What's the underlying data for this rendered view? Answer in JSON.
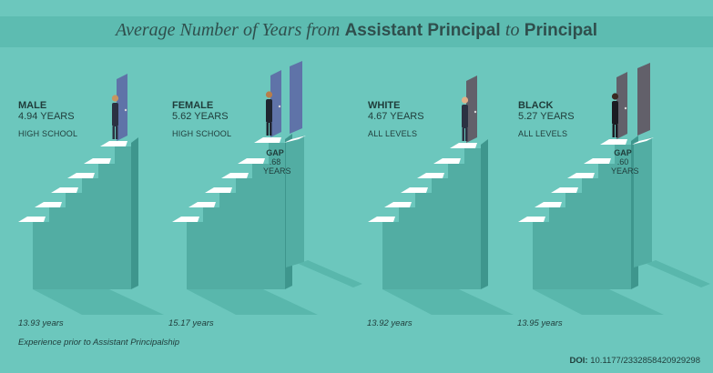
{
  "title": {
    "lead": "Average Number of Years from",
    "strong1": "Assistant Principal",
    "mid": "to",
    "strong2": "Principal"
  },
  "chart_data": {
    "type": "bar",
    "categories": [
      "MALE",
      "FEMALE",
      "WHITE",
      "BLACK"
    ],
    "series": [
      {
        "name": "",
        "values": [
          4.94,
          5.62,
          4.67,
          5.27
        ]
      }
    ],
    "prior_experience_years": [
      13.93,
      15.17,
      13.92,
      13.95
    ],
    "year_labels": [
      "4.94 YEARS",
      "5.62 YEARS",
      "4.67 YEARS",
      "5.27 YEARS"
    ],
    "levels": [
      "HIGH SCHOOL",
      "HIGH SCHOOL",
      "ALL LEVELS",
      "ALL LEVELS"
    ],
    "prior_labels": [
      "13.93 years",
      "15.17 years",
      "13.92 years",
      "13.95 years"
    ],
    "gaps": [
      {
        "between": "MALE-FEMALE",
        "label": "GAP",
        "value": ".68",
        "unit": "YEARS"
      },
      {
        "between": "WHITE-BLACK",
        "label": "GAP",
        "value": ".60",
        "unit": "YEARS"
      }
    ],
    "footnote": "Experience prior to Assistant Principalship",
    "colors": {
      "background": "#6cc7bd",
      "title_band": "#5dbcb1",
      "stair_face": "#52ada3",
      "stair_side": "#3e968d",
      "stair_tread": "#ffffff",
      "shadow": "#59b7ac",
      "door_male": "#5f73a8",
      "door_female": "#5f73a8",
      "door_white": "#62606a",
      "door_black": "#62606a"
    }
  },
  "doi": {
    "label": "DOI:",
    "value": "10.1177/2332858420929298"
  }
}
